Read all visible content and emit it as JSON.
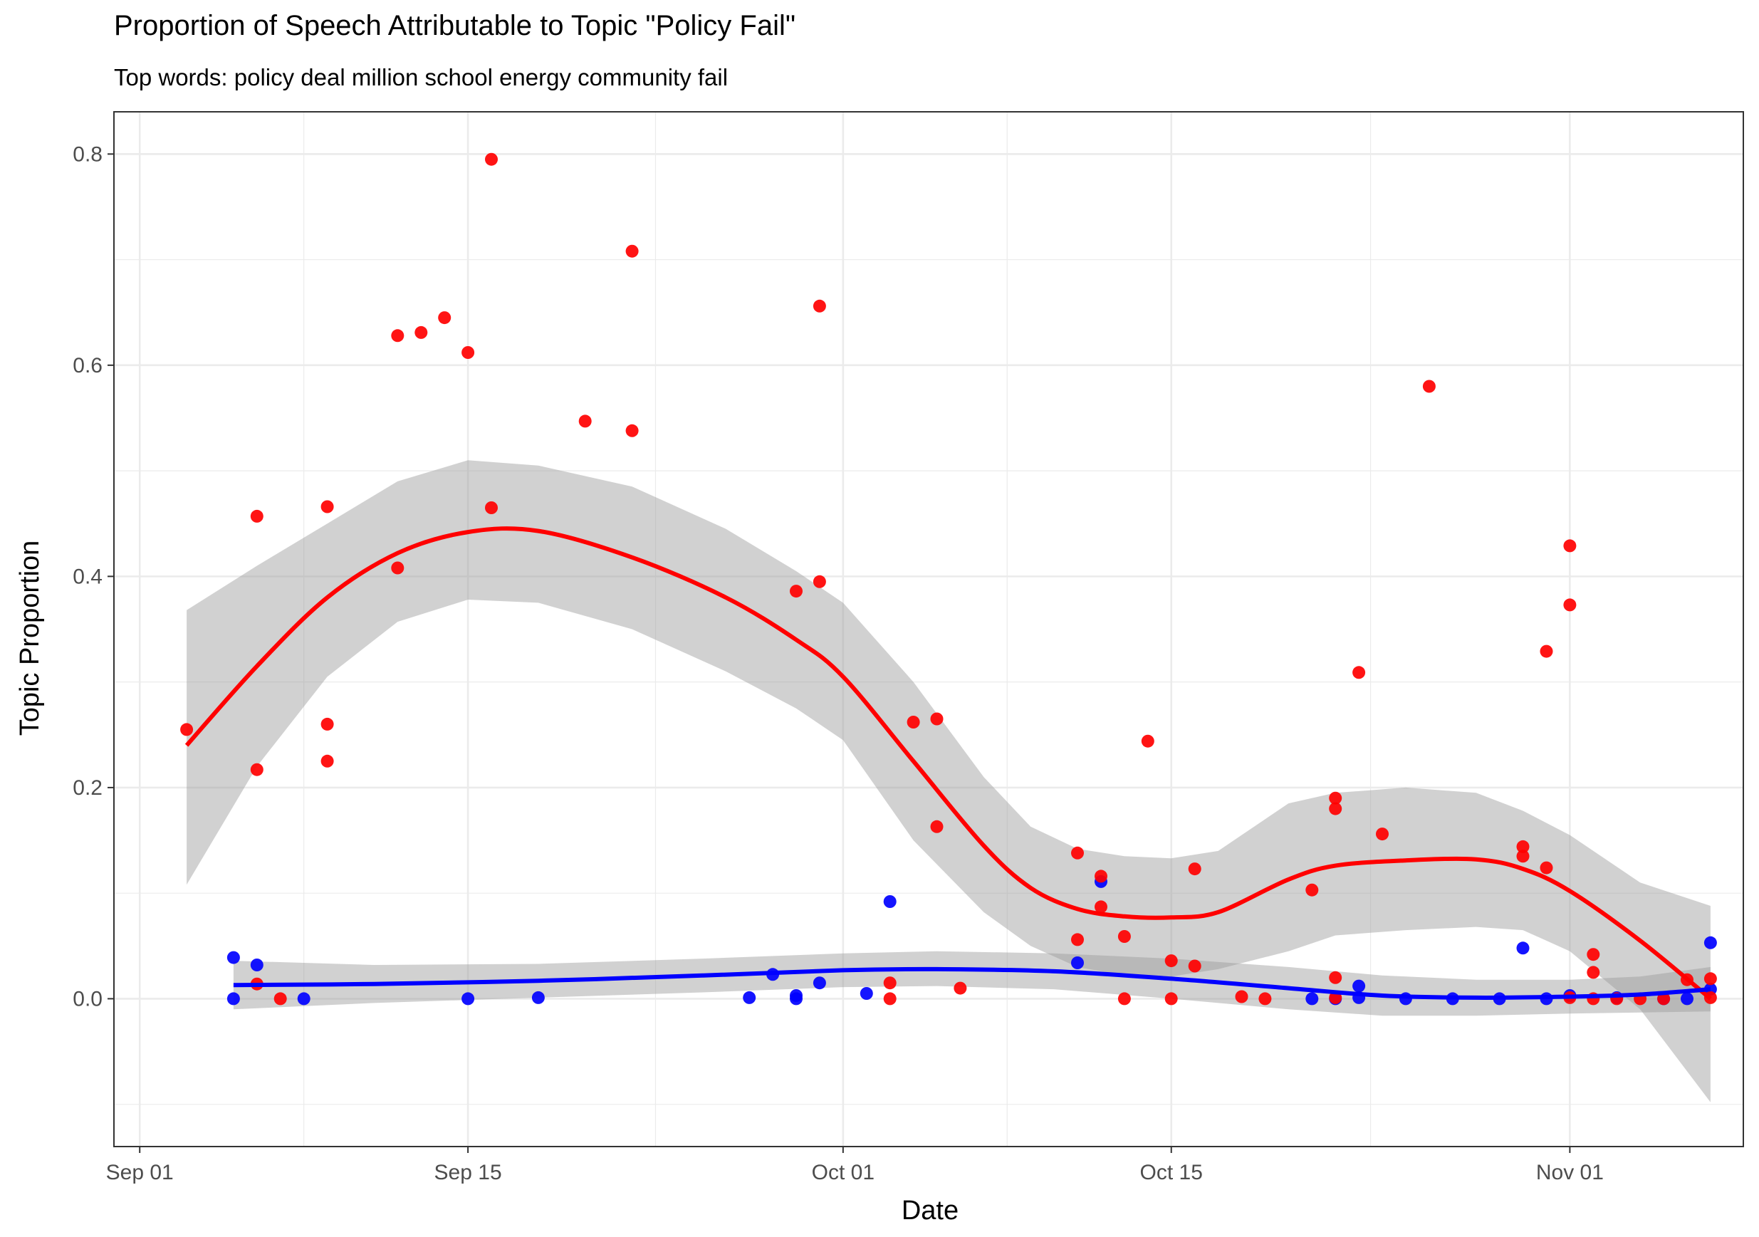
{
  "chart_data": {
    "type": "scatter",
    "title": "Proportion of Speech Attributable to Topic \"Policy Fail\"",
    "subtitle": "Top words: policy deal million school energy community fail",
    "xlabel": "Date",
    "ylabel": "Topic Proportion",
    "x_type": "date",
    "xlim": [
      "2020-08-31",
      "2020-11-07"
    ],
    "ylim": [
      -0.14,
      0.84
    ],
    "x_ticks": [
      "2020-09-01",
      "2020-09-15",
      "2020-10-01",
      "2020-10-15",
      "2020-11-01"
    ],
    "x_tick_labels": [
      "Sep 01",
      "Sep 15",
      "Oct 01",
      "Oct 15",
      "Nov 01"
    ],
    "y_ticks": [
      0.0,
      0.2,
      0.4,
      0.6,
      0.8
    ],
    "y_tick_labels": [
      "0.0",
      "0.2",
      "0.4",
      "0.6",
      "0.8"
    ],
    "grid": true,
    "colors": {
      "red_series": "#ff0000",
      "blue_series": "#0000ff",
      "ribbon": "#999999",
      "grid": "#ebebeb",
      "panel_border": "#333333"
    },
    "series": [
      {
        "color": "#ff0000",
        "points": [
          [
            "2020-09-03",
            0.255
          ],
          [
            "2020-09-06",
            0.457
          ],
          [
            "2020-09-06",
            0.217
          ],
          [
            "2020-09-06",
            0.014
          ],
          [
            "2020-09-07",
            0.0
          ],
          [
            "2020-09-09",
            0.466
          ],
          [
            "2020-09-09",
            0.26
          ],
          [
            "2020-09-09",
            0.225
          ],
          [
            "2020-09-12",
            0.628
          ],
          [
            "2020-09-12",
            0.408
          ],
          [
            "2020-09-13",
            0.631
          ],
          [
            "2020-09-14",
            0.645
          ],
          [
            "2020-09-15",
            0.612
          ],
          [
            "2020-09-16",
            0.795
          ],
          [
            "2020-09-16",
            0.465
          ],
          [
            "2020-09-20",
            0.547
          ],
          [
            "2020-09-22",
            0.708
          ],
          [
            "2020-09-22",
            0.538
          ],
          [
            "2020-09-29",
            0.386
          ],
          [
            "2020-09-30",
            0.656
          ],
          [
            "2020-09-30",
            0.395
          ],
          [
            "2020-10-03",
            0.015
          ],
          [
            "2020-10-03",
            0.0
          ],
          [
            "2020-10-04",
            0.262
          ],
          [
            "2020-10-05",
            0.265
          ],
          [
            "2020-10-05",
            0.163
          ],
          [
            "2020-10-06",
            0.01
          ],
          [
            "2020-10-11",
            0.138
          ],
          [
            "2020-10-11",
            0.056
          ],
          [
            "2020-10-12",
            0.116
          ],
          [
            "2020-10-12",
            0.087
          ],
          [
            "2020-10-13",
            0.059
          ],
          [
            "2020-10-13",
            0.0
          ],
          [
            "2020-10-14",
            0.244
          ],
          [
            "2020-10-15",
            0.036
          ],
          [
            "2020-10-15",
            0.0
          ],
          [
            "2020-10-16",
            0.123
          ],
          [
            "2020-10-16",
            0.031
          ],
          [
            "2020-10-18",
            0.002
          ],
          [
            "2020-10-19",
            0.0
          ],
          [
            "2020-10-21",
            0.103
          ],
          [
            "2020-10-22",
            0.19
          ],
          [
            "2020-10-22",
            0.18
          ],
          [
            "2020-10-22",
            0.02
          ],
          [
            "2020-10-22",
            0.001
          ],
          [
            "2020-10-23",
            0.309
          ],
          [
            "2020-10-24",
            0.156
          ],
          [
            "2020-10-26",
            0.58
          ],
          [
            "2020-10-30",
            0.144
          ],
          [
            "2020-10-30",
            0.135
          ],
          [
            "2020-10-31",
            0.329
          ],
          [
            "2020-10-31",
            0.124
          ],
          [
            "2020-11-01",
            0.429
          ],
          [
            "2020-11-01",
            0.373
          ],
          [
            "2020-11-01",
            0.001
          ],
          [
            "2020-11-02",
            0.042
          ],
          [
            "2020-11-02",
            0.025
          ],
          [
            "2020-11-02",
            0.0
          ],
          [
            "2020-11-03",
            0.0
          ],
          [
            "2020-11-04",
            0.0
          ],
          [
            "2020-11-05",
            0.0
          ],
          [
            "2020-11-06",
            0.018
          ],
          [
            "2020-11-07",
            0.019
          ],
          [
            "2020-11-07",
            0.001
          ]
        ],
        "smooth": [
          [
            "2020-09-03",
            0.24
          ],
          [
            "2020-09-06",
            0.315
          ],
          [
            "2020-09-09",
            0.38
          ],
          [
            "2020-09-12",
            0.422
          ],
          [
            "2020-09-15",
            0.442
          ],
          [
            "2020-09-18",
            0.443
          ],
          [
            "2020-09-22",
            0.418
          ],
          [
            "2020-09-26",
            0.38
          ],
          [
            "2020-09-29",
            0.34
          ],
          [
            "2020-10-01",
            0.305
          ],
          [
            "2020-10-04",
            0.225
          ],
          [
            "2020-10-07",
            0.145
          ],
          [
            "2020-10-09",
            0.105
          ],
          [
            "2020-10-11",
            0.085
          ],
          [
            "2020-10-13",
            0.078
          ],
          [
            "2020-10-15",
            0.077
          ],
          [
            "2020-10-17",
            0.082
          ],
          [
            "2020-10-20",
            0.113
          ],
          [
            "2020-10-22",
            0.126
          ],
          [
            "2020-10-25",
            0.131
          ],
          [
            "2020-10-28",
            0.132
          ],
          [
            "2020-10-30",
            0.123
          ],
          [
            "2020-11-01",
            0.102
          ],
          [
            "2020-11-04",
            0.055
          ],
          [
            "2020-11-07",
            0.0
          ]
        ],
        "band_upper": [
          [
            "2020-09-03",
            0.368
          ],
          [
            "2020-09-06",
            0.41
          ],
          [
            "2020-09-09",
            0.45
          ],
          [
            "2020-09-12",
            0.49
          ],
          [
            "2020-09-15",
            0.51
          ],
          [
            "2020-09-18",
            0.505
          ],
          [
            "2020-09-22",
            0.485
          ],
          [
            "2020-09-26",
            0.445
          ],
          [
            "2020-09-29",
            0.405
          ],
          [
            "2020-10-01",
            0.375
          ],
          [
            "2020-10-04",
            0.3
          ],
          [
            "2020-10-07",
            0.21
          ],
          [
            "2020-10-09",
            0.163
          ],
          [
            "2020-10-11",
            0.142
          ],
          [
            "2020-10-13",
            0.135
          ],
          [
            "2020-10-15",
            0.133
          ],
          [
            "2020-10-17",
            0.14
          ],
          [
            "2020-10-20",
            0.185
          ],
          [
            "2020-10-22",
            0.195
          ],
          [
            "2020-10-25",
            0.2
          ],
          [
            "2020-10-28",
            0.195
          ],
          [
            "2020-10-30",
            0.178
          ],
          [
            "2020-11-01",
            0.155
          ],
          [
            "2020-11-04",
            0.11
          ],
          [
            "2020-11-07",
            0.088
          ]
        ],
        "band_lower": [
          [
            "2020-09-03",
            0.108
          ],
          [
            "2020-09-06",
            0.22
          ],
          [
            "2020-09-09",
            0.305
          ],
          [
            "2020-09-12",
            0.357
          ],
          [
            "2020-09-15",
            0.378
          ],
          [
            "2020-09-18",
            0.375
          ],
          [
            "2020-09-22",
            0.35
          ],
          [
            "2020-09-26",
            0.31
          ],
          [
            "2020-09-29",
            0.275
          ],
          [
            "2020-10-01",
            0.245
          ],
          [
            "2020-10-04",
            0.15
          ],
          [
            "2020-10-07",
            0.082
          ],
          [
            "2020-10-09",
            0.05
          ],
          [
            "2020-10-11",
            0.03
          ],
          [
            "2020-10-13",
            0.022
          ],
          [
            "2020-10-15",
            0.021
          ],
          [
            "2020-10-17",
            0.028
          ],
          [
            "2020-10-20",
            0.045
          ],
          [
            "2020-10-22",
            0.06
          ],
          [
            "2020-10-25",
            0.065
          ],
          [
            "2020-10-28",
            0.068
          ],
          [
            "2020-10-30",
            0.065
          ],
          [
            "2020-11-01",
            0.045
          ],
          [
            "2020-11-04",
            -0.01
          ],
          [
            "2020-11-07",
            -0.098
          ]
        ]
      },
      {
        "color": "#0000ff",
        "points": [
          [
            "2020-09-05",
            0.039
          ],
          [
            "2020-09-05",
            0.0
          ],
          [
            "2020-09-06",
            0.032
          ],
          [
            "2020-09-08",
            0.0
          ],
          [
            "2020-09-15",
            0.0
          ],
          [
            "2020-09-18",
            0.001
          ],
          [
            "2020-09-27",
            0.001
          ],
          [
            "2020-09-28",
            0.023
          ],
          [
            "2020-09-29",
            0.003
          ],
          [
            "2020-09-29",
            0.0
          ],
          [
            "2020-09-30",
            0.015
          ],
          [
            "2020-10-02",
            0.005
          ],
          [
            "2020-10-03",
            0.092
          ],
          [
            "2020-10-11",
            0.034
          ],
          [
            "2020-10-12",
            0.111
          ],
          [
            "2020-10-21",
            0.0
          ],
          [
            "2020-10-22",
            0.0
          ],
          [
            "2020-10-23",
            0.012
          ],
          [
            "2020-10-23",
            0.001
          ],
          [
            "2020-10-25",
            0.0
          ],
          [
            "2020-10-27",
            0.0
          ],
          [
            "2020-10-29",
            0.0
          ],
          [
            "2020-10-30",
            0.048
          ],
          [
            "2020-10-31",
            0.0
          ],
          [
            "2020-11-01",
            0.003
          ],
          [
            "2020-11-03",
            0.001
          ],
          [
            "2020-11-05",
            0.0
          ],
          [
            "2020-11-06",
            0.0
          ],
          [
            "2020-11-07",
            0.053
          ],
          [
            "2020-11-07",
            0.009
          ]
        ],
        "smooth": [
          [
            "2020-09-05",
            0.013
          ],
          [
            "2020-09-11",
            0.014
          ],
          [
            "2020-09-18",
            0.017
          ],
          [
            "2020-09-25",
            0.022
          ],
          [
            "2020-10-01",
            0.027
          ],
          [
            "2020-10-05",
            0.028
          ],
          [
            "2020-10-10",
            0.026
          ],
          [
            "2020-10-15",
            0.019
          ],
          [
            "2020-10-20",
            0.01
          ],
          [
            "2020-10-24",
            0.003
          ],
          [
            "2020-10-28",
            0.001
          ],
          [
            "2020-11-01",
            0.002
          ],
          [
            "2020-11-04",
            0.004
          ],
          [
            "2020-11-07",
            0.009
          ]
        ],
        "band_upper": [
          [
            "2020-09-05",
            0.036
          ],
          [
            "2020-09-11",
            0.032
          ],
          [
            "2020-09-18",
            0.033
          ],
          [
            "2020-09-25",
            0.038
          ],
          [
            "2020-10-01",
            0.043
          ],
          [
            "2020-10-05",
            0.045
          ],
          [
            "2020-10-10",
            0.043
          ],
          [
            "2020-10-15",
            0.038
          ],
          [
            "2020-10-20",
            0.03
          ],
          [
            "2020-10-24",
            0.022
          ],
          [
            "2020-10-28",
            0.018
          ],
          [
            "2020-11-01",
            0.018
          ],
          [
            "2020-11-04",
            0.021
          ],
          [
            "2020-11-07",
            0.03
          ]
        ],
        "band_lower": [
          [
            "2020-09-05",
            -0.01
          ],
          [
            "2020-09-11",
            -0.004
          ],
          [
            "2020-09-18",
            0.001
          ],
          [
            "2020-09-25",
            0.006
          ],
          [
            "2020-10-01",
            0.011
          ],
          [
            "2020-10-05",
            0.012
          ],
          [
            "2020-10-10",
            0.009
          ],
          [
            "2020-10-15",
            0.0
          ],
          [
            "2020-10-20",
            -0.01
          ],
          [
            "2020-10-24",
            -0.016
          ],
          [
            "2020-10-28",
            -0.016
          ],
          [
            "2020-11-01",
            -0.014
          ],
          [
            "2020-11-04",
            -0.013
          ],
          [
            "2020-11-07",
            -0.012
          ]
        ]
      }
    ]
  }
}
